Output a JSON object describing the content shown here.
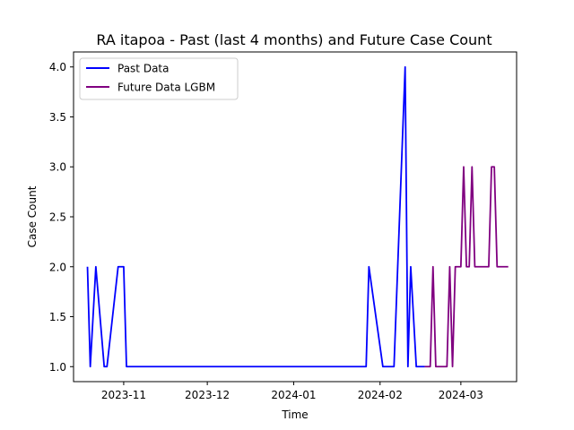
{
  "chart_data": {
    "type": "line",
    "title": "RA itapoa - Past (last 4 months) and Future Case Count",
    "xlabel": "Time",
    "ylabel": "Case Count",
    "xlim": [
      "2023-10-14",
      "2024-03-21"
    ],
    "ylim": [
      0.85,
      4.15
    ],
    "x_ticks": [
      {
        "date": "2023-11-01",
        "label": "2023-11"
      },
      {
        "date": "2023-12-01",
        "label": "2023-12"
      },
      {
        "date": "2024-01-01",
        "label": "2024-01"
      },
      {
        "date": "2024-02-01",
        "label": "2024-02"
      },
      {
        "date": "2024-03-01",
        "label": "2024-03"
      }
    ],
    "y_ticks": [
      {
        "value": 1.0,
        "label": "1.0"
      },
      {
        "value": 1.5,
        "label": "1.5"
      },
      {
        "value": 2.0,
        "label": "2.0"
      },
      {
        "value": 2.5,
        "label": "2.5"
      },
      {
        "value": 3.0,
        "label": "3.0"
      },
      {
        "value": 3.5,
        "label": "3.5"
      },
      {
        "value": 4.0,
        "label": "4.0"
      }
    ],
    "grid": false,
    "legend_position": "top-left",
    "series": [
      {
        "name": "Past Data",
        "color": "#0000ff",
        "points": [
          {
            "x": "2023-10-19",
            "y": 2
          },
          {
            "x": "2023-10-20",
            "y": 1
          },
          {
            "x": "2023-10-22",
            "y": 2
          },
          {
            "x": "2023-10-25",
            "y": 1
          },
          {
            "x": "2023-10-26",
            "y": 1
          },
          {
            "x": "2023-10-30",
            "y": 2
          },
          {
            "x": "2023-10-31",
            "y": 2
          },
          {
            "x": "2023-11-01",
            "y": 2
          },
          {
            "x": "2023-11-02",
            "y": 1
          },
          {
            "x": "2024-01-27",
            "y": 1
          },
          {
            "x": "2024-01-28",
            "y": 2
          },
          {
            "x": "2024-02-02",
            "y": 1
          },
          {
            "x": "2024-02-06",
            "y": 1
          },
          {
            "x": "2024-02-10",
            "y": 4
          },
          {
            "x": "2024-02-11",
            "y": 1
          },
          {
            "x": "2024-02-12",
            "y": 2
          },
          {
            "x": "2024-02-14",
            "y": 1
          },
          {
            "x": "2024-02-17",
            "y": 1
          }
        ]
      },
      {
        "name": "Future Data LGBM",
        "color": "#800080",
        "points": [
          {
            "x": "2024-02-17",
            "y": 1
          },
          {
            "x": "2024-02-19",
            "y": 1
          },
          {
            "x": "2024-02-20",
            "y": 2
          },
          {
            "x": "2024-02-21",
            "y": 1
          },
          {
            "x": "2024-02-25",
            "y": 1
          },
          {
            "x": "2024-02-26",
            "y": 2
          },
          {
            "x": "2024-02-27",
            "y": 1
          },
          {
            "x": "2024-02-28",
            "y": 2
          },
          {
            "x": "2024-03-01",
            "y": 2
          },
          {
            "x": "2024-03-02",
            "y": 3
          },
          {
            "x": "2024-03-03",
            "y": 2
          },
          {
            "x": "2024-03-04",
            "y": 2
          },
          {
            "x": "2024-03-05",
            "y": 3
          },
          {
            "x": "2024-03-06",
            "y": 2
          },
          {
            "x": "2024-03-11",
            "y": 2
          },
          {
            "x": "2024-03-12",
            "y": 3
          },
          {
            "x": "2024-03-13",
            "y": 3
          },
          {
            "x": "2024-03-14",
            "y": 2
          },
          {
            "x": "2024-03-18",
            "y": 2
          }
        ]
      }
    ]
  }
}
